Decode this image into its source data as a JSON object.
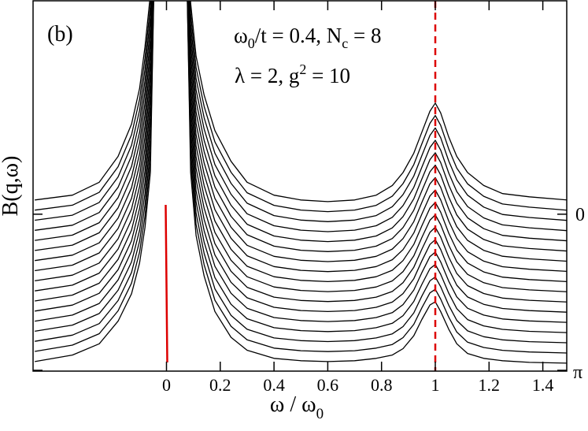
{
  "panel_label": "(b)",
  "annotations": {
    "line1": {
      "w": "ω",
      "w_sub": "0",
      "mid": "/t = 0.4, N",
      "n_sub": "c",
      "end": " = 8"
    },
    "line2": {
      "text": "λ = 2, g",
      "sup": "2",
      "end": " = 10"
    }
  },
  "axes": {
    "xlabel": {
      "w": "ω",
      "slash": " / ",
      "w2": "ω",
      "sub": "0"
    },
    "ylabel": "B(q,ω)",
    "x_ticks": [
      "0",
      "0.2",
      "0.4",
      "0.6",
      "0.8",
      "1",
      "1.2",
      "1.4"
    ],
    "x_tick_values": [
      0,
      0.2,
      0.4,
      0.6,
      0.8,
      1.0,
      1.2,
      1.4
    ],
    "right_labels": {
      "top": "0",
      "bottom": "π"
    }
  },
  "colors": {
    "curves": "#000000",
    "markers": "#dd0000",
    "axis": "#000000"
  },
  "chart_data": {
    "type": "line",
    "xlim": [
      -0.49,
      1.49
    ],
    "num_curves": 17,
    "series_labels": {
      "first": "0",
      "last": "π"
    },
    "curve_profile": {
      "x": [
        -0.49,
        -0.35,
        -0.25,
        -0.18,
        -0.13,
        -0.1,
        -0.08,
        -0.06,
        -0.04,
        0.07,
        0.09,
        0.11,
        0.14,
        0.18,
        0.24,
        0.3,
        0.4,
        0.5,
        0.6,
        0.7,
        0.78,
        0.84,
        0.88,
        0.92,
        0.95,
        0.98,
        1.0,
        1.02,
        1.05,
        1.08,
        1.12,
        1.18,
        1.25,
        1.35,
        1.49
      ],
      "first_curve_y": [
        0.03,
        0.06,
        0.14,
        0.3,
        0.5,
        0.72,
        0.98,
        1.3,
        1.9,
        1.9,
        1.25,
        0.92,
        0.68,
        0.46,
        0.27,
        0.14,
        0.06,
        0.03,
        0.02,
        0.03,
        0.06,
        0.12,
        0.2,
        0.32,
        0.45,
        0.58,
        0.63,
        0.57,
        0.42,
        0.3,
        0.2,
        0.12,
        0.07,
        0.05,
        0.03
      ],
      "last_curve_y": [
        -0.97,
        -0.93,
        -0.86,
        -0.72,
        -0.55,
        -0.36,
        -0.14,
        0.2,
        1.9,
        1.9,
        0.2,
        -0.19,
        -0.44,
        -0.66,
        -0.82,
        -0.9,
        -0.95,
        -0.965,
        -0.97,
        -0.965,
        -0.95,
        -0.93,
        -0.89,
        -0.81,
        -0.71,
        -0.62,
        -0.6,
        -0.66,
        -0.77,
        -0.86,
        -0.92,
        -0.95,
        -0.965,
        -0.975,
        -0.98
      ]
    },
    "ylim": [
      -1.0,
      1.9
    ],
    "vertical_markers": [
      {
        "x": 1.0,
        "style": "dashed"
      },
      {
        "x": 0.0,
        "style": "solid",
        "y_range": [
          -1.0,
          0.0
        ]
      }
    ]
  }
}
